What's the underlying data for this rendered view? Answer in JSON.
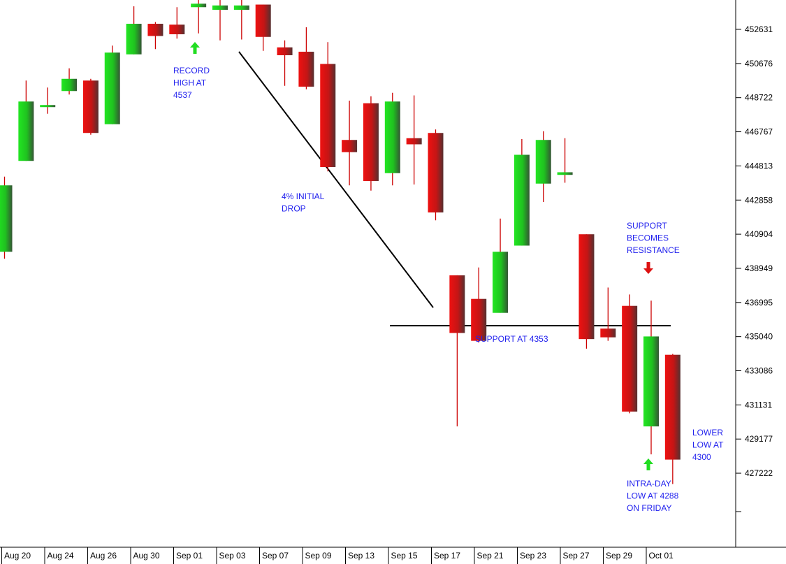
{
  "chart_data": {
    "type": "candlestick",
    "title": "",
    "xlabel": "",
    "ylabel": "",
    "ylim": [
      425300,
      456000
    ],
    "y_ticks": [
      "452631",
      "450676",
      "448722",
      "446767",
      "444813",
      "442858",
      "440904",
      "438949",
      "436995",
      "435040",
      "433086",
      "431131",
      "429177",
      "427222"
    ],
    "x_ticks": [
      "Aug 20",
      "Aug 24",
      "Aug 26",
      "Aug 30",
      "Sep 01",
      "Sep 03",
      "Sep 07",
      "Sep 09",
      "Sep 13",
      "Sep 15",
      "Sep 17",
      "Sep 21",
      "Sep 23",
      "Sep 27",
      "Sep 29",
      "Oct 01"
    ],
    "colors": {
      "up": "#22dd22",
      "down": "#dd1111",
      "wick": "#cc0000",
      "annotation": "#2222ee",
      "line": "#000000"
    },
    "candles": [
      {
        "o": 439900,
        "c": 443700,
        "h": 444200,
        "l": 439500
      },
      {
        "o": 445100,
        "c": 448500,
        "h": 449700,
        "l": 445100
      },
      {
        "o": 448200,
        "c": 448300,
        "h": 449300,
        "l": 447800
      },
      {
        "o": 449100,
        "c": 449800,
        "h": 450400,
        "l": 448900
      },
      {
        "o": 449700,
        "c": 446700,
        "h": 449800,
        "l": 446600
      },
      {
        "o": 447200,
        "c": 451300,
        "h": 451700,
        "l": 447200
      },
      {
        "o": 451200,
        "c": 452950,
        "h": 453950,
        "l": 451200
      },
      {
        "o": 452950,
        "c": 452250,
        "h": 453050,
        "l": 451500
      },
      {
        "o": 452900,
        "c": 452350,
        "h": 453900,
        "l": 452100
      },
      {
        "o": 453900,
        "c": 454100,
        "h": 454850,
        "l": 452400
      },
      {
        "o": 453750,
        "c": 454000,
        "h": 454500,
        "l": 452000
      },
      {
        "o": 453750,
        "c": 454000,
        "h": 454600,
        "l": 452050
      },
      {
        "o": 454050,
        "c": 452200,
        "h": 454050,
        "l": 451400
      },
      {
        "o": 451600,
        "c": 451150,
        "h": 452000,
        "l": 449400
      },
      {
        "o": 451350,
        "c": 449350,
        "h": 452750,
        "l": 449200
      },
      {
        "o": 450650,
        "c": 444750,
        "h": 451900,
        "l": 444500
      },
      {
        "o": 446300,
        "c": 445600,
        "h": 448550,
        "l": 443700
      },
      {
        "o": 448400,
        "c": 443950,
        "h": 448800,
        "l": 443400
      },
      {
        "o": 444400,
        "c": 448500,
        "h": 449000,
        "l": 443700
      },
      {
        "o": 446400,
        "c": 446050,
        "h": 448850,
        "l": 443750
      },
      {
        "o": 446700,
        "c": 442150,
        "h": 446900,
        "l": 441700
      },
      {
        "o": 438550,
        "c": 435250,
        "h": 438550,
        "l": 429900
      },
      {
        "o": 437200,
        "c": 434800,
        "h": 439000,
        "l": 434700
      },
      {
        "o": 436400,
        "c": 439900,
        "h": 441800,
        "l": 436400
      },
      {
        "o": 440250,
        "c": 445450,
        "h": 446350,
        "l": 440250
      },
      {
        "o": 443800,
        "c": 446300,
        "h": 446800,
        "l": 442750
      },
      {
        "o": 444300,
        "c": 444450,
        "h": 446400,
        "l": 443850
      },
      {
        "o": 440900,
        "c": 434900,
        "h": 440900,
        "l": 434350
      },
      {
        "o": 435500,
        "c": 435000,
        "h": 437850,
        "l": 434800
      },
      {
        "o": 436800,
        "c": 430750,
        "h": 437450,
        "l": 430650
      },
      {
        "o": 429900,
        "c": 435050,
        "h": 437100,
        "l": 428300
      },
      {
        "o": 434000,
        "c": 428000,
        "h": 434050,
        "l": 426600
      }
    ],
    "annotations": [
      {
        "lines": [
          "RECORD",
          "HIGH AT",
          "4537"
        ],
        "arrow": "up",
        "arrow_color": "#22dd22"
      },
      {
        "lines": [
          "4% INITIAL",
          "DROP"
        ]
      },
      {
        "lines": [
          "SUPPORT AT 4353"
        ]
      },
      {
        "lines": [
          "SUPPORT",
          "BECOMES",
          "RESISTANCE"
        ],
        "arrow": "down",
        "arrow_color": "#dd1111"
      },
      {
        "lines": [
          "INTRA-DAY",
          "LOW AT 4288",
          "ON FRIDAY"
        ],
        "arrow": "up",
        "arrow_color": "#22dd22"
      },
      {
        "lines": [
          "LOWER",
          "LOW AT",
          "4300"
        ]
      }
    ]
  }
}
